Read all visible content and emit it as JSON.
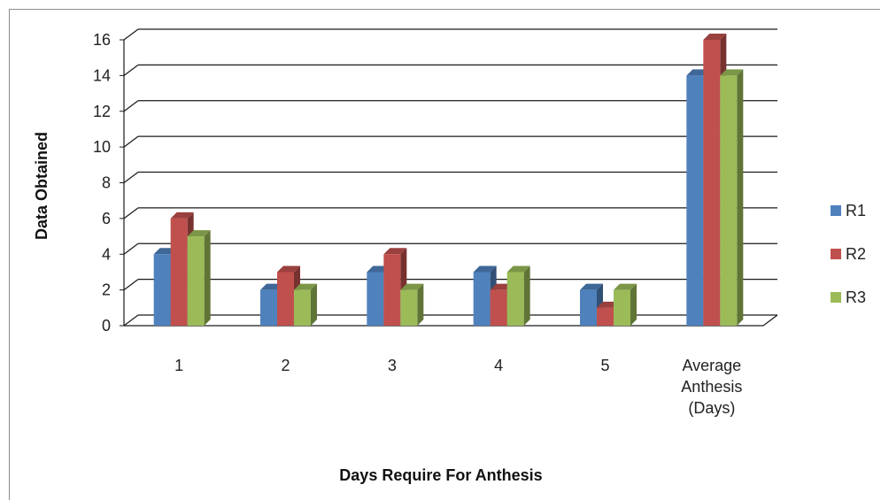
{
  "chart_data": {
    "type": "bar",
    "title": "",
    "xlabel": "Days Require For Anthesis",
    "ylabel": "Data Obtained",
    "categories": [
      "1",
      "2",
      "3",
      "4",
      "5",
      "Average Anthesis (Days)"
    ],
    "category_lines": [
      [
        "1"
      ],
      [
        "2"
      ],
      [
        "3"
      ],
      [
        "4"
      ],
      [
        "5"
      ],
      [
        "Average",
        "Anthesis",
        "(Days)"
      ]
    ],
    "series": [
      {
        "name": "R1",
        "color": "#4f81bd",
        "values": [
          4,
          2,
          3,
          3,
          2,
          14
        ]
      },
      {
        "name": "R2",
        "color": "#c0504d",
        "values": [
          6,
          3,
          4,
          2,
          1,
          16
        ]
      },
      {
        "name": "R3",
        "color": "#9bbb59",
        "values": [
          5,
          2,
          2,
          3,
          2,
          14
        ]
      }
    ],
    "ylim": [
      0,
      16
    ],
    "yticks": [
      0,
      2,
      4,
      6,
      8,
      10,
      12,
      14,
      16
    ],
    "grid": true,
    "legend_position": "right",
    "style": "3d-clustered-column"
  }
}
